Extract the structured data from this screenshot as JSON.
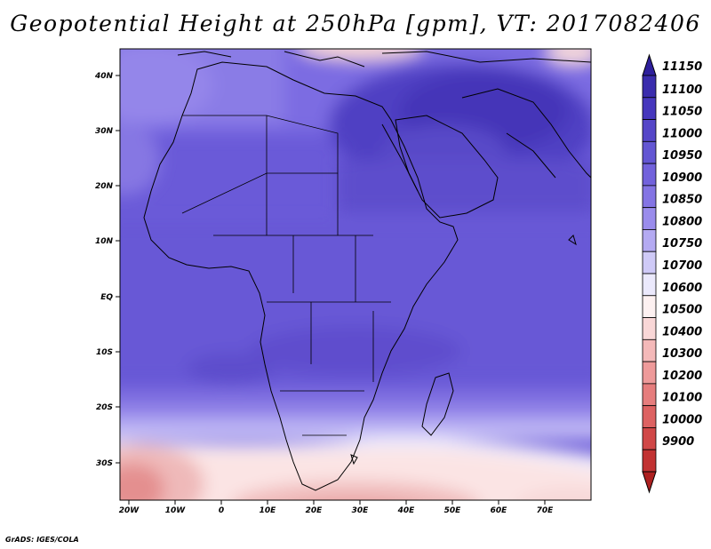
{
  "title": "Geopotential Height at 250hPa [gpm], VT: 2017082406",
  "credit": "GrADS: IGES/COLA",
  "y_ticks": [
    "40N",
    "30N",
    "20N",
    "10N",
    "EQ",
    "10S",
    "20S",
    "30S"
  ],
  "x_ticks": [
    "20W",
    "10W",
    "0",
    "10E",
    "20E",
    "30E",
    "40E",
    "50E",
    "60E",
    "70E"
  ],
  "colorbar": {
    "top_label": "11150",
    "labels": [
      "11100",
      "11050",
      "11000",
      "10950",
      "10900",
      "10850",
      "10800",
      "10750",
      "10700",
      "10600",
      "10500",
      "10400",
      "10300",
      "10200",
      "10100",
      "10000",
      "9900"
    ],
    "colors": [
      "#2e1f9c",
      "#3a2cad",
      "#4637bd",
      "#5546c8",
      "#6356d3",
      "#7262dc",
      "#8474e4",
      "#9a8cec",
      "#b4aaf2",
      "#cfcaf7",
      "#ebe9fc",
      "#fdf1f1",
      "#f9d7d7",
      "#f4b9b9",
      "#ee9a9a",
      "#e67d7d",
      "#dd6262",
      "#d04747",
      "#c23232",
      "#ad2020"
    ]
  },
  "map": {
    "region": "Africa and Middle East",
    "lon_range": [
      "20W",
      "80E"
    ],
    "lat_range": [
      "37S",
      "45N"
    ]
  }
}
